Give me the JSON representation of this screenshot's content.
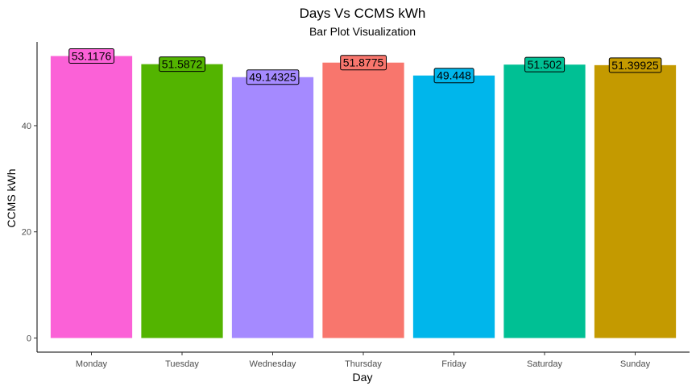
{
  "chart_data": {
    "type": "bar",
    "title": "Days Vs CCMS kWh",
    "subtitle": "Bar Plot Visualization",
    "xlabel": "Day",
    "ylabel": "CCMS kWh",
    "categories": [
      "Monday",
      "Tuesday",
      "Wednesday",
      "Thursday",
      "Friday",
      "Saturday",
      "Sunday"
    ],
    "values": [
      53.1176,
      51.5872,
      49.14325,
      51.8775,
      49.448,
      51.502,
      51.39925
    ],
    "value_labels": [
      "53.1176",
      "51.5872",
      "49.14325",
      "51.8775",
      "49.448",
      "51.502",
      "51.39925"
    ],
    "colors": [
      "#FB61D7",
      "#53B400",
      "#A58AFF",
      "#F8766D",
      "#00B6EB",
      "#00C094",
      "#C49A00"
    ],
    "yticks": [
      0,
      20,
      40
    ],
    "ytick_labels": [
      "0",
      "20",
      "40"
    ],
    "ylim": [
      -2.66,
      55.78
    ],
    "grid": false,
    "legend": "none"
  }
}
